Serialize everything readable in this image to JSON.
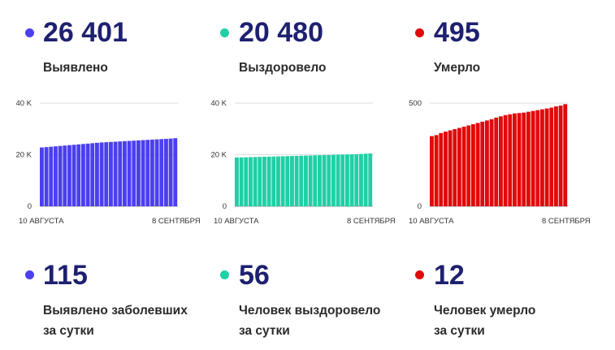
{
  "panels": [
    {
      "color": "#4b3ff0",
      "total": "26 401",
      "total_label": "Выявлено",
      "daily": "115",
      "daily_label_1": "Выявлено заболевших",
      "daily_label_2": "за сутки"
    },
    {
      "color": "#20cfa6",
      "total": "20 480",
      "total_label": "Выздоровело",
      "daily": "56",
      "daily_label_1": "Человек выздоровело",
      "daily_label_2": "за сутки"
    },
    {
      "color": "#e00a0a",
      "total": "495",
      "total_label": "Умерло",
      "daily": "12",
      "daily_label_1": "Человек умерло",
      "daily_label_2": "за сутки"
    }
  ],
  "chart_data": [
    {
      "type": "bar",
      "x_start_label": "10 АВГУСТА",
      "x_end_label": "8 СЕНТЯБРЯ",
      "ylim": [
        0,
        40000
      ],
      "yticks": [
        0,
        20000,
        40000
      ],
      "ytick_labels": [
        "0",
        "20 K",
        "40 K"
      ],
      "grid": true,
      "color": "#4b3ff0",
      "values": [
        22800,
        22950,
        23100,
        23250,
        23400,
        23550,
        23700,
        23850,
        24000,
        24150,
        24300,
        24450,
        24600,
        24750,
        24850,
        24950,
        25050,
        25150,
        25250,
        25350,
        25450,
        25550,
        25650,
        25750,
        25850,
        25950,
        26050,
        26150,
        26250,
        26401
      ]
    },
    {
      "type": "bar",
      "x_start_label": "10 АВГУСТА",
      "x_end_label": "8 СЕНТЯБРЯ",
      "ylim": [
        0,
        40000
      ],
      "yticks": [
        0,
        20000,
        40000
      ],
      "ytick_labels": [
        "0",
        "20 K",
        "40 K"
      ],
      "grid": true,
      "color": "#20cfa6",
      "values": [
        18900,
        18950,
        19000,
        19050,
        19100,
        19150,
        19200,
        19250,
        19300,
        19350,
        19400,
        19450,
        19500,
        19550,
        19600,
        19650,
        19700,
        19750,
        19800,
        19850,
        19900,
        19950,
        20000,
        20050,
        20100,
        20150,
        20200,
        20280,
        20380,
        20480
      ]
    },
    {
      "type": "bar",
      "x_start_label": "10 АВГУСТА",
      "x_end_label": "8 СЕНТЯБРЯ",
      "ylim": [
        0,
        500
      ],
      "yticks": [
        0,
        500
      ],
      "ytick_labels": [
        "0",
        "500"
      ],
      "grid": true,
      "color": "#e00a0a",
      "values": [
        340,
        345,
        355,
        362,
        368,
        374,
        380,
        386,
        392,
        398,
        404,
        410,
        416,
        422,
        430,
        436,
        442,
        446,
        450,
        452,
        454,
        458,
        462,
        466,
        470,
        474,
        478,
        484,
        488,
        495
      ]
    }
  ]
}
